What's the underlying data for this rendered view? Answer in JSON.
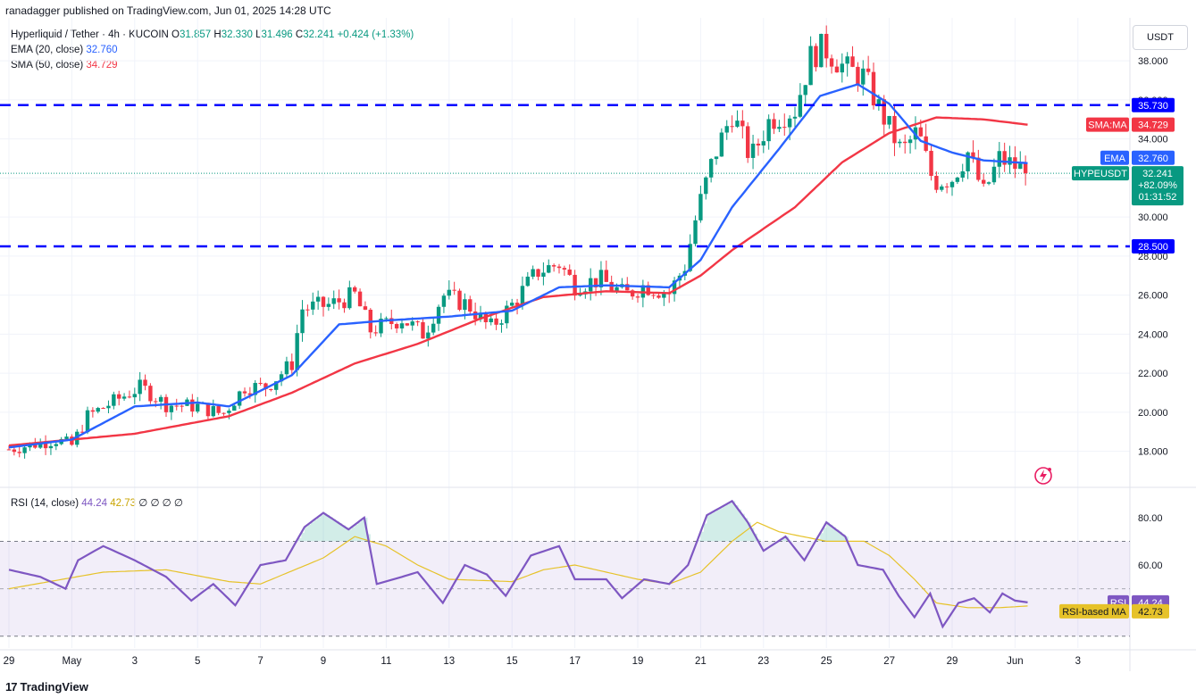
{
  "header": {
    "publisher": "ranadagger published on TradingView.com, Jun 01, 2025 14:28 UTC"
  },
  "symbol": {
    "name": "Hyperliquid / Tether · 4h · KUCOIN",
    "o_label": "O",
    "o": "31.857",
    "h_label": "H",
    "h": "32.330",
    "l_label": "L",
    "l": "31.496",
    "c_label": "C",
    "c": "32.241",
    "change": "+0.424 (+1.33%)"
  },
  "indicators": {
    "ema_label": "EMA (20, close)",
    "ema_value": "32.760",
    "sma_label": "SMA (50, close)",
    "sma_value": "34.729",
    "rsi_label": "RSI (14, close)",
    "rsi_value": "44.24",
    "rsi_ma_value": "42.73",
    "rsi_extra": "∅ ∅ ∅ ∅"
  },
  "currency": "USDT",
  "price_tags": {
    "ema_tag": "EMA",
    "ema_value": "32.760",
    "sma_tag": "SMA:MA",
    "sma_value": "34.729",
    "symbol_tag": "HYPEUSDT",
    "last_price": "32.241",
    "last_change": "+82.09%",
    "countdown": "01:31:52",
    "level_high": "35.730",
    "level_low": "28.500",
    "rsi_tag": "RSI",
    "rsi_value": "44.24",
    "rsi_ma_tag": "RSI-based MA",
    "rsi_ma_value": "42.73"
  },
  "footer": {
    "logo": "TradingView"
  },
  "colors": {
    "up": "#089981",
    "down": "#f23645",
    "ema": "#2962ff",
    "sma": "#f23645",
    "level": "#0000ff",
    "rsi": "#7e57c2",
    "rsi_ma": "#e6c229"
  },
  "chart_data": {
    "type": "candlestick",
    "price_axis": {
      "ticks": [
        "18.000",
        "20.000",
        "22.000",
        "24.000",
        "26.000",
        "28.000",
        "30.000",
        "32.000",
        "34.000",
        "36.000",
        "38.000"
      ],
      "range": [
        16.2,
        40.2
      ]
    },
    "x_ticks": [
      "29",
      "May",
      "3",
      "5",
      "7",
      "9",
      "11",
      "13",
      "15",
      "17",
      "19",
      "21",
      "23",
      "25",
      "27",
      "29",
      "Jun",
      "3"
    ],
    "x_tick_positions_days": [
      0,
      2,
      4,
      6,
      8,
      10,
      12,
      14,
      16,
      18,
      20,
      22,
      24,
      26,
      28,
      30,
      32,
      34
    ],
    "levels": [
      35.73,
      28.5
    ],
    "ohlc_anchors": [
      [
        0,
        18.1
      ],
      [
        1.5,
        18.6
      ],
      [
        2.0,
        18.3
      ],
      [
        2.5,
        19.8
      ],
      [
        3.5,
        20.7
      ],
      [
        4.2,
        21.3
      ],
      [
        5.0,
        20.4
      ],
      [
        6.0,
        20.3
      ],
      [
        6.8,
        19.9
      ],
      [
        7.5,
        21.3
      ],
      [
        8.2,
        21.3
      ],
      [
        9.0,
        22.5
      ],
      [
        9.3,
        25.3
      ],
      [
        10.2,
        25.5
      ],
      [
        11.0,
        26.0
      ],
      [
        11.5,
        24.2
      ],
      [
        12.5,
        24.8
      ],
      [
        13.2,
        24.0
      ],
      [
        13.8,
        26.0
      ],
      [
        14.6,
        25.5
      ],
      [
        15.3,
        24.3
      ],
      [
        16.0,
        25.5
      ],
      [
        16.8,
        27.2
      ],
      [
        17.5,
        27.6
      ],
      [
        18.0,
        26.5
      ],
      [
        18.8,
        26.8
      ],
      [
        19.6,
        26.0
      ],
      [
        20.2,
        26.5
      ],
      [
        21.0,
        26.1
      ],
      [
        21.5,
        27.5
      ],
      [
        21.9,
        30.3
      ],
      [
        22.4,
        33.0
      ],
      [
        23.0,
        35.3
      ],
      [
        23.6,
        33.0
      ],
      [
        24.2,
        35.0
      ],
      [
        25.0,
        35.5
      ],
      [
        25.5,
        38.2
      ],
      [
        25.9,
        38.7
      ],
      [
        26.6,
        37.6
      ],
      [
        27.2,
        37.2
      ],
      [
        27.7,
        35.5
      ],
      [
        28.4,
        33.3
      ],
      [
        28.9,
        34.4
      ],
      [
        29.4,
        31.8
      ],
      [
        30.0,
        32.0
      ],
      [
        30.5,
        33.3
      ],
      [
        31.0,
        31.2
      ],
      [
        31.5,
        33.0
      ],
      [
        32.0,
        32.6
      ],
      [
        32.4,
        32.3
      ]
    ],
    "ema20_anchors": [
      [
        0,
        18.2
      ],
      [
        2,
        18.6
      ],
      [
        4,
        20.3
      ],
      [
        6,
        20.5
      ],
      [
        7,
        20.3
      ],
      [
        9,
        21.9
      ],
      [
        10.5,
        24.5
      ],
      [
        12,
        24.7
      ],
      [
        14,
        24.9
      ],
      [
        16,
        25.2
      ],
      [
        17.5,
        26.4
      ],
      [
        19,
        26.5
      ],
      [
        21,
        26.4
      ],
      [
        22,
        27.8
      ],
      [
        23,
        30.5
      ],
      [
        24.5,
        33.5
      ],
      [
        25.8,
        36.2
      ],
      [
        27,
        36.8
      ],
      [
        28,
        35.8
      ],
      [
        29,
        33.9
      ],
      [
        30,
        33.3
      ],
      [
        31,
        32.9
      ],
      [
        32.4,
        32.76
      ]
    ],
    "sma50_anchors": [
      [
        0,
        18.3
      ],
      [
        4,
        18.9
      ],
      [
        7,
        19.8
      ],
      [
        9,
        21.0
      ],
      [
        11,
        22.5
      ],
      [
        13,
        23.5
      ],
      [
        15,
        24.8
      ],
      [
        17,
        25.9
      ],
      [
        19,
        26.2
      ],
      [
        21,
        26.1
      ],
      [
        22,
        27.0
      ],
      [
        23,
        28.3
      ],
      [
        25,
        30.5
      ],
      [
        26.5,
        32.8
      ],
      [
        28,
        34.3
      ],
      [
        29.5,
        35.1
      ],
      [
        31,
        35.0
      ],
      [
        32.4,
        34.729
      ]
    ],
    "rsi_axis": {
      "ticks": [
        "60.00",
        "80.00"
      ],
      "range": [
        25,
        92
      ],
      "bands": [
        30,
        70
      ]
    },
    "rsi_anchors": [
      [
        0,
        58
      ],
      [
        1,
        55
      ],
      [
        1.8,
        50
      ],
      [
        2.2,
        62
      ],
      [
        3,
        68
      ],
      [
        4,
        62
      ],
      [
        5,
        55
      ],
      [
        5.8,
        45
      ],
      [
        6.5,
        52
      ],
      [
        7.2,
        43
      ],
      [
        8,
        60
      ],
      [
        8.8,
        62
      ],
      [
        9.4,
        76
      ],
      [
        10,
        82
      ],
      [
        10.8,
        75
      ],
      [
        11.3,
        80
      ],
      [
        11.7,
        52
      ],
      [
        12.5,
        55
      ],
      [
        13,
        57
      ],
      [
        13.8,
        44
      ],
      [
        14.5,
        60
      ],
      [
        15.2,
        56
      ],
      [
        15.8,
        47
      ],
      [
        16.6,
        64
      ],
      [
        17.5,
        68
      ],
      [
        18,
        54
      ],
      [
        19,
        54
      ],
      [
        19.5,
        46
      ],
      [
        20.2,
        54
      ],
      [
        21,
        52
      ],
      [
        21.6,
        60
      ],
      [
        22.2,
        81
      ],
      [
        23,
        87
      ],
      [
        23.5,
        78
      ],
      [
        24,
        66
      ],
      [
        24.7,
        72
      ],
      [
        25.3,
        62
      ],
      [
        26,
        78
      ],
      [
        26.6,
        72
      ],
      [
        27,
        60
      ],
      [
        27.8,
        58
      ],
      [
        28.3,
        47
      ],
      [
        28.8,
        38
      ],
      [
        29.3,
        48
      ],
      [
        29.7,
        34
      ],
      [
        30.2,
        44
      ],
      [
        30.7,
        46
      ],
      [
        31.2,
        40
      ],
      [
        31.6,
        48
      ],
      [
        32.0,
        45
      ],
      [
        32.4,
        44.24
      ]
    ],
    "rsi_ma_anchors": [
      [
        0,
        50
      ],
      [
        3,
        57
      ],
      [
        5,
        58
      ],
      [
        7,
        53
      ],
      [
        8,
        52
      ],
      [
        10,
        63
      ],
      [
        11,
        72
      ],
      [
        12,
        68
      ],
      [
        13,
        60
      ],
      [
        14,
        54
      ],
      [
        16,
        53
      ],
      [
        17,
        58
      ],
      [
        18,
        60
      ],
      [
        20,
        54
      ],
      [
        21,
        52
      ],
      [
        22,
        57
      ],
      [
        23,
        70
      ],
      [
        23.8,
        78
      ],
      [
        24.5,
        74
      ],
      [
        26,
        70
      ],
      [
        27.2,
        70
      ],
      [
        28,
        64
      ],
      [
        28.8,
        54
      ],
      [
        29.5,
        44
      ],
      [
        30.5,
        42
      ],
      [
        31.5,
        42
      ],
      [
        32.4,
        42.73
      ]
    ]
  }
}
